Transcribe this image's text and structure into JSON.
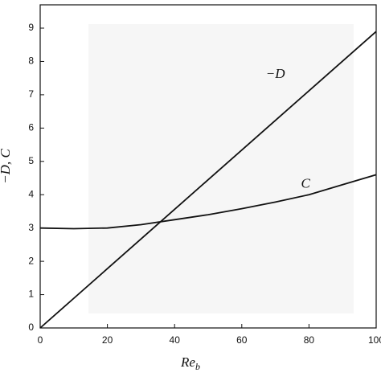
{
  "chart_data": {
    "type": "line",
    "x_label": {
      "main": "Re",
      "sub": "b"
    },
    "y_label": "−D, C",
    "x": [
      0,
      10,
      20,
      30,
      40,
      50,
      60,
      70,
      80,
      90,
      100
    ],
    "series": [
      {
        "name": "−D",
        "color": "#111111",
        "values": [
          0,
          0.89,
          1.78,
          2.67,
          3.56,
          4.45,
          5.34,
          6.23,
          7.12,
          8.01,
          8.9
        ]
      },
      {
        "name": "C",
        "color": "#111111",
        "values": [
          3.0,
          2.98,
          3.0,
          3.1,
          3.25,
          3.4,
          3.58,
          3.78,
          4.0,
          4.3,
          4.6
        ]
      }
    ],
    "xlim": [
      0,
      100
    ],
    "xticks": [
      0,
      20,
      40,
      60,
      80,
      100
    ],
    "ylim": [
      0,
      9.7
    ],
    "yticks": [
      0,
      1,
      2,
      3,
      4,
      5,
      6,
      7,
      8,
      9
    ],
    "grid": false
  }
}
